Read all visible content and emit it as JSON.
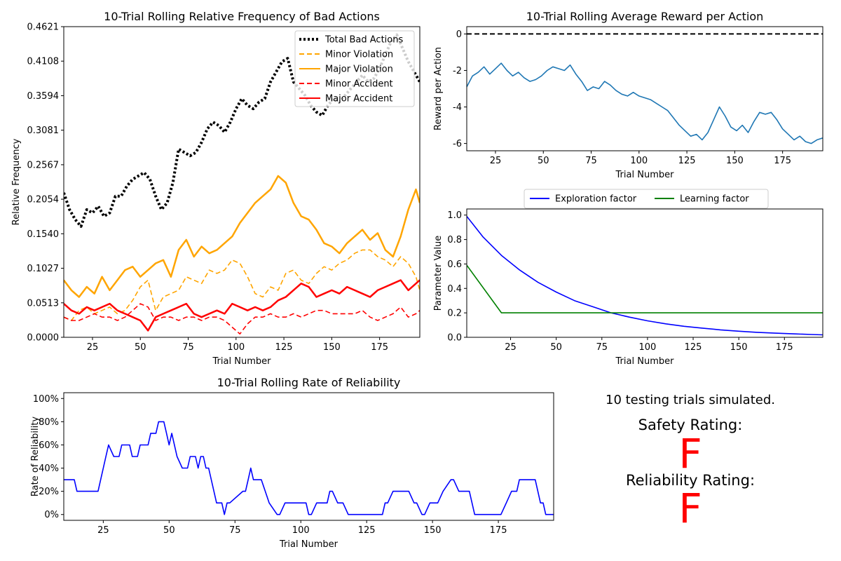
{
  "chart_data": [
    {
      "id": "bad",
      "type": "line",
      "title": "10-Trial Rolling Relative Frequency of Bad Actions",
      "xlabel": "Trial Number",
      "ylabel": "Relative Frequency",
      "xlim": [
        10,
        196
      ],
      "ylim": [
        0,
        0.4621
      ],
      "xticks": [
        25,
        50,
        75,
        100,
        125,
        150,
        175
      ],
      "yticks": [
        0.0,
        0.0513,
        0.1027,
        0.154,
        0.2054,
        0.2567,
        0.3081,
        0.3594,
        0.4108,
        0.4621
      ],
      "ytick_labels": [
        "0.0000",
        "0.0513",
        "0.1027",
        "0.1540",
        "0.2054",
        "0.2567",
        "0.3081",
        "0.3594",
        "0.4108",
        "0.4621"
      ],
      "legend_position": "top-right",
      "series": [
        {
          "name": "Total Bad Actions",
          "color": "#000000",
          "style": "dotted",
          "x": [
            10,
            13,
            16,
            19,
            22,
            25,
            28,
            31,
            34,
            37,
            40,
            43,
            46,
            49,
            52,
            55,
            58,
            61,
            64,
            67,
            70,
            73,
            76,
            79,
            82,
            85,
            88,
            91,
            94,
            97,
            100,
            103,
            106,
            109,
            112,
            115,
            118,
            121,
            124,
            127,
            130,
            133,
            136,
            139,
            142,
            145,
            148,
            151,
            154,
            157,
            160,
            163,
            166,
            169,
            172,
            175,
            178,
            181,
            184,
            187,
            190,
            193,
            196
          ],
          "y": [
            0.215,
            0.19,
            0.175,
            0.165,
            0.19,
            0.185,
            0.195,
            0.18,
            0.185,
            0.21,
            0.21,
            0.225,
            0.235,
            0.24,
            0.245,
            0.235,
            0.21,
            0.19,
            0.2,
            0.23,
            0.28,
            0.275,
            0.27,
            0.275,
            0.29,
            0.31,
            0.32,
            0.315,
            0.305,
            0.32,
            0.34,
            0.355,
            0.345,
            0.34,
            0.35,
            0.355,
            0.38,
            0.395,
            0.41,
            0.415,
            0.38,
            0.37,
            0.36,
            0.345,
            0.335,
            0.33,
            0.345,
            0.355,
            0.35,
            0.36,
            0.37,
            0.38,
            0.39,
            0.38,
            0.385,
            0.4,
            0.42,
            0.44,
            0.45,
            0.43,
            0.41,
            0.395,
            0.38
          ]
        },
        {
          "name": "Minor Violation",
          "color": "#ffa500",
          "style": "dashed",
          "x": [
            10,
            14,
            18,
            22,
            26,
            30,
            34,
            38,
            42,
            46,
            50,
            54,
            58,
            62,
            66,
            70,
            74,
            78,
            82,
            86,
            90,
            94,
            98,
            102,
            106,
            110,
            114,
            118,
            122,
            126,
            130,
            134,
            138,
            142,
            146,
            150,
            154,
            158,
            162,
            166,
            170,
            174,
            178,
            182,
            186,
            190,
            194,
            196
          ],
          "y": [
            0.03,
            0.025,
            0.04,
            0.045,
            0.035,
            0.04,
            0.045,
            0.035,
            0.04,
            0.055,
            0.075,
            0.085,
            0.04,
            0.06,
            0.065,
            0.07,
            0.09,
            0.085,
            0.08,
            0.1,
            0.095,
            0.1,
            0.115,
            0.11,
            0.09,
            0.065,
            0.06,
            0.075,
            0.07,
            0.095,
            0.1,
            0.085,
            0.08,
            0.095,
            0.105,
            0.1,
            0.11,
            0.115,
            0.125,
            0.13,
            0.13,
            0.12,
            0.115,
            0.105,
            0.12,
            0.11,
            0.09,
            0.07
          ]
        },
        {
          "name": "Major Violation",
          "color": "#ffa500",
          "style": "solid",
          "x": [
            10,
            14,
            18,
            22,
            26,
            30,
            34,
            38,
            42,
            46,
            50,
            54,
            58,
            62,
            66,
            70,
            74,
            78,
            82,
            86,
            90,
            94,
            98,
            102,
            106,
            110,
            114,
            118,
            122,
            126,
            130,
            134,
            138,
            142,
            146,
            150,
            154,
            158,
            162,
            166,
            170,
            174,
            178,
            182,
            186,
            190,
            194,
            196
          ],
          "y": [
            0.085,
            0.07,
            0.06,
            0.075,
            0.065,
            0.09,
            0.07,
            0.085,
            0.1,
            0.105,
            0.09,
            0.1,
            0.11,
            0.115,
            0.09,
            0.13,
            0.145,
            0.12,
            0.135,
            0.125,
            0.13,
            0.14,
            0.15,
            0.17,
            0.185,
            0.2,
            0.21,
            0.22,
            0.24,
            0.23,
            0.2,
            0.18,
            0.175,
            0.16,
            0.14,
            0.135,
            0.125,
            0.14,
            0.15,
            0.16,
            0.145,
            0.155,
            0.13,
            0.12,
            0.15,
            0.19,
            0.22,
            0.2
          ]
        },
        {
          "name": "Minor Accident",
          "color": "#ff0000",
          "style": "dashed",
          "x": [
            10,
            14,
            18,
            22,
            26,
            30,
            34,
            38,
            42,
            46,
            50,
            54,
            58,
            62,
            66,
            70,
            74,
            78,
            82,
            86,
            90,
            94,
            98,
            102,
            106,
            110,
            114,
            118,
            122,
            126,
            130,
            134,
            138,
            142,
            146,
            150,
            154,
            158,
            162,
            166,
            170,
            174,
            178,
            182,
            186,
            190,
            194,
            196
          ],
          "y": [
            0.03,
            0.025,
            0.025,
            0.03,
            0.035,
            0.03,
            0.03,
            0.025,
            0.03,
            0.04,
            0.05,
            0.045,
            0.025,
            0.03,
            0.03,
            0.025,
            0.03,
            0.03,
            0.025,
            0.03,
            0.03,
            0.025,
            0.015,
            0.005,
            0.02,
            0.03,
            0.03,
            0.035,
            0.03,
            0.03,
            0.035,
            0.03,
            0.035,
            0.04,
            0.04,
            0.035,
            0.035,
            0.035,
            0.035,
            0.04,
            0.03,
            0.025,
            0.03,
            0.035,
            0.045,
            0.03,
            0.035,
            0.04
          ]
        },
        {
          "name": "Major Accident",
          "color": "#ff0000",
          "style": "solid",
          "x": [
            10,
            14,
            18,
            22,
            26,
            30,
            34,
            38,
            42,
            46,
            50,
            54,
            58,
            62,
            66,
            70,
            74,
            78,
            82,
            86,
            90,
            94,
            98,
            102,
            106,
            110,
            114,
            118,
            122,
            126,
            130,
            134,
            138,
            142,
            146,
            150,
            154,
            158,
            162,
            166,
            170,
            174,
            178,
            182,
            186,
            190,
            194,
            196
          ],
          "y": [
            0.05,
            0.04,
            0.035,
            0.045,
            0.04,
            0.045,
            0.05,
            0.04,
            0.035,
            0.03,
            0.025,
            0.01,
            0.03,
            0.035,
            0.04,
            0.045,
            0.05,
            0.035,
            0.03,
            0.035,
            0.04,
            0.035,
            0.05,
            0.045,
            0.04,
            0.045,
            0.04,
            0.045,
            0.055,
            0.06,
            0.07,
            0.08,
            0.075,
            0.06,
            0.065,
            0.07,
            0.065,
            0.075,
            0.07,
            0.065,
            0.06,
            0.07,
            0.075,
            0.08,
            0.085,
            0.07,
            0.08,
            0.085
          ]
        }
      ]
    },
    {
      "id": "reward",
      "type": "line",
      "title": "10-Trial Rolling Average Reward per Action",
      "xlabel": "Trial Number",
      "ylabel": "Reward per Action",
      "xlim": [
        10,
        196
      ],
      "ylim": [
        -6.4,
        0.4
      ],
      "xticks": [
        25,
        50,
        75,
        100,
        125,
        150,
        175
      ],
      "yticks": [
        0,
        -2,
        -4,
        -6
      ],
      "reference_line": {
        "y": 0,
        "style": "dashed",
        "color": "#000000"
      },
      "series": [
        {
          "name": "",
          "color": "#1f77b4",
          "style": "solid",
          "x": [
            10,
            13,
            16,
            19,
            22,
            25,
            28,
            31,
            34,
            37,
            40,
            43,
            46,
            49,
            52,
            55,
            58,
            61,
            64,
            67,
            70,
            73,
            76,
            79,
            82,
            85,
            88,
            91,
            94,
            97,
            100,
            103,
            106,
            109,
            112,
            115,
            118,
            121,
            124,
            127,
            130,
            133,
            136,
            139,
            142,
            145,
            148,
            151,
            154,
            157,
            160,
            163,
            166,
            169,
            172,
            175,
            178,
            181,
            184,
            187,
            190,
            193,
            196
          ],
          "y": [
            -2.9,
            -2.3,
            -2.1,
            -1.8,
            -2.2,
            -1.9,
            -1.6,
            -2.0,
            -2.3,
            -2.1,
            -2.4,
            -2.6,
            -2.5,
            -2.3,
            -2.0,
            -1.8,
            -1.9,
            -2.0,
            -1.7,
            -2.2,
            -2.6,
            -3.1,
            -2.9,
            -3.0,
            -2.6,
            -2.8,
            -3.1,
            -3.3,
            -3.4,
            -3.2,
            -3.4,
            -3.5,
            -3.6,
            -3.8,
            -4.0,
            -4.2,
            -4.6,
            -5.0,
            -5.3,
            -5.6,
            -5.5,
            -5.8,
            -5.4,
            -4.7,
            -4.0,
            -4.5,
            -5.1,
            -5.3,
            -5.0,
            -5.4,
            -4.8,
            -4.3,
            -4.4,
            -4.3,
            -4.7,
            -5.2,
            -5.5,
            -5.8,
            -5.6,
            -5.9,
            -6.0,
            -5.8,
            -5.7
          ]
        }
      ]
    },
    {
      "id": "params",
      "type": "line",
      "title": "",
      "xlabel": "Trial Number",
      "ylabel": "Parameter Value",
      "xlim": [
        1,
        196
      ],
      "ylim": [
        0,
        1.05
      ],
      "xticks": [
        25,
        50,
        75,
        100,
        125,
        150,
        175
      ],
      "yticks": [
        0.0,
        0.2,
        0.4,
        0.6,
        0.8,
        1.0
      ],
      "ytick_labels": [
        "0.0",
        "0.2",
        "0.4",
        "0.6",
        "0.8",
        "1.0"
      ],
      "legend_position": "top-center",
      "series": [
        {
          "name": "Exploration factor",
          "color": "#0000ff",
          "style": "solid",
          "x": [
            1,
            10,
            20,
            30,
            40,
            50,
            60,
            70,
            80,
            90,
            100,
            110,
            120,
            130,
            140,
            150,
            160,
            170,
            180,
            190,
            196
          ],
          "y": [
            0.99,
            0.82,
            0.67,
            0.55,
            0.45,
            0.37,
            0.3,
            0.25,
            0.2,
            0.165,
            0.135,
            0.11,
            0.09,
            0.075,
            0.061,
            0.05,
            0.041,
            0.034,
            0.028,
            0.023,
            0.02
          ]
        },
        {
          "name": "Learning factor",
          "color": "#008000",
          "style": "solid",
          "x": [
            1,
            20,
            196
          ],
          "y": [
            0.59,
            0.2,
            0.2
          ]
        }
      ]
    },
    {
      "id": "reliability",
      "type": "line",
      "title": "10-Trial Rolling Rate of Reliability",
      "xlabel": "Trial Number",
      "ylabel": "Rate of Reliability",
      "xlim": [
        10,
        196
      ],
      "ylim": [
        -0.05,
        1.05
      ],
      "xticks": [
        25,
        50,
        75,
        100,
        125,
        150,
        175
      ],
      "yticks": [
        0,
        0.2,
        0.4,
        0.6,
        0.8,
        1.0
      ],
      "ytick_labels": [
        "0%",
        "20%",
        "40%",
        "60%",
        "80%",
        "100%"
      ],
      "series": [
        {
          "name": "",
          "color": "#0000ff",
          "style": "solid",
          "x": [
            10,
            14,
            15,
            23,
            26,
            27,
            29,
            31,
            32,
            35,
            36,
            38,
            39,
            42,
            43,
            45,
            46,
            48,
            49,
            50,
            51,
            53,
            55,
            57,
            58,
            60,
            61,
            62,
            63,
            64,
            65,
            68,
            70,
            71,
            72,
            73,
            78,
            79,
            80,
            81,
            82,
            85,
            88,
            91,
            92,
            94,
            95,
            102,
            103,
            104,
            106,
            107,
            110,
            111,
            112,
            114,
            115,
            116,
            118,
            122,
            123,
            124,
            131,
            132,
            133,
            135,
            140,
            141,
            143,
            144,
            146,
            147,
            149,
            150,
            152,
            154,
            157,
            158,
            160,
            164,
            166,
            167,
            175,
            176,
            178,
            180,
            182,
            183,
            187,
            188,
            189,
            191,
            192,
            193,
            194,
            196
          ],
          "y": [
            0.3,
            0.3,
            0.2,
            0.2,
            0.5,
            0.6,
            0.5,
            0.5,
            0.6,
            0.6,
            0.5,
            0.5,
            0.6,
            0.6,
            0.7,
            0.7,
            0.8,
            0.8,
            0.7,
            0.6,
            0.7,
            0.5,
            0.4,
            0.4,
            0.5,
            0.5,
            0.4,
            0.5,
            0.5,
            0.4,
            0.4,
            0.1,
            0.1,
            0.0,
            0.1,
            0.1,
            0.2,
            0.2,
            0.3,
            0.4,
            0.3,
            0.3,
            0.1,
            0.0,
            0.0,
            0.1,
            0.1,
            0.1,
            0.0,
            0.0,
            0.1,
            0.1,
            0.1,
            0.2,
            0.2,
            0.1,
            0.1,
            0.1,
            0.0,
            0.0,
            0.0,
            0.0,
            0.0,
            0.1,
            0.1,
            0.2,
            0.2,
            0.2,
            0.1,
            0.1,
            0.0,
            0.0,
            0.1,
            0.1,
            0.1,
            0.2,
            0.3,
            0.3,
            0.2,
            0.2,
            0.0,
            0.0,
            0.0,
            0.0,
            0.1,
            0.2,
            0.2,
            0.3,
            0.3,
            0.3,
            0.3,
            0.1,
            0.1,
            0.0,
            0.0,
            0.0
          ]
        }
      ]
    }
  ],
  "summary": {
    "trials_text": "10 testing trials simulated.",
    "safety_label": "Safety Rating:",
    "safety_grade": "F",
    "reliability_label": "Reliability Rating:",
    "reliability_grade": "F",
    "grade_color": "#ff0000"
  }
}
